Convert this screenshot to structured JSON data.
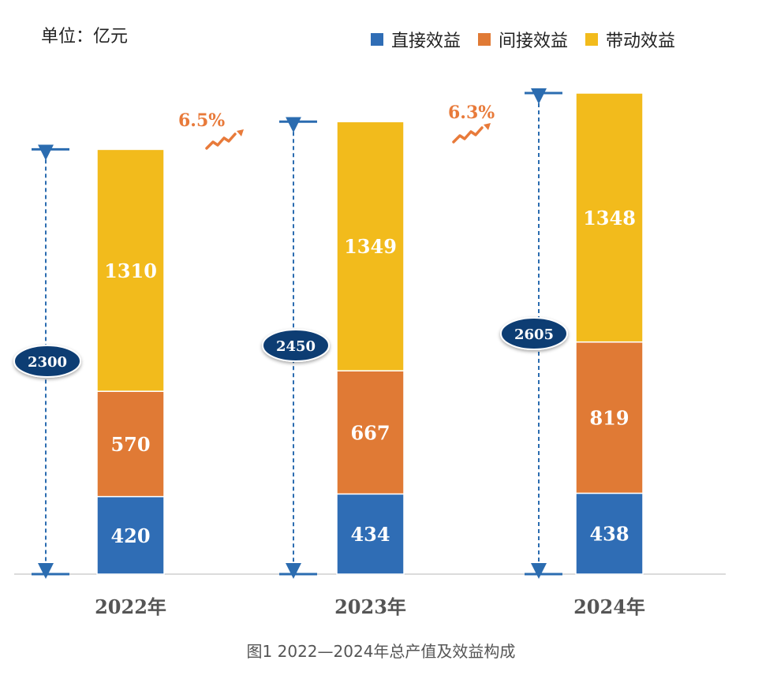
{
  "unit_label": "单位：亿元",
  "caption": "图1   2022—2024年总产值及效益构成",
  "colors": {
    "direct": "#2F6DB5",
    "indirect": "#E07A35",
    "driven": "#F2BB1C",
    "axis": "#2B6CB0",
    "growth": "#E87A3A",
    "badge": "#0E3C73"
  },
  "chart_data": {
    "type": "bar",
    "stacked": true,
    "categories": [
      "2022年",
      "2023年",
      "2024年"
    ],
    "series": [
      {
        "key": "direct",
        "name": "直接效益",
        "values": [
          420,
          434,
          438
        ]
      },
      {
        "key": "indirect",
        "name": "间接效益",
        "values": [
          570,
          667,
          819
        ]
      },
      {
        "key": "driven",
        "name": "带动效益",
        "values": [
          1310,
          1349,
          1348
        ]
      }
    ],
    "totals": [
      2300,
      2450,
      2605
    ],
    "total_labels": [
      "2300",
      "2450",
      "2605"
    ],
    "growth_labels": [
      "6.5%",
      "6.3%"
    ],
    "ylim": [
      0,
      2605
    ],
    "legend_position": "top-right"
  }
}
